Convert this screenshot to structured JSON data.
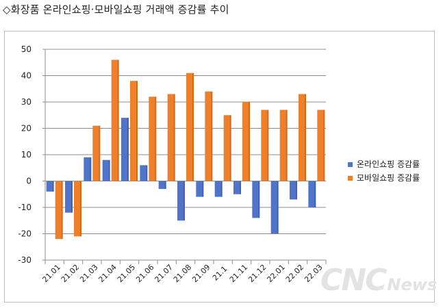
{
  "title": "◇화장품 온라인쇼핑·모바일쇼핑 거래액 증감률 추이",
  "watermark": {
    "big": "CNC",
    "small": "News"
  },
  "chart_data": {
    "type": "bar",
    "categories": [
      "21.01",
      "21.02",
      "21.03",
      "21.04",
      "21.05",
      "21.06",
      "21.07",
      "21.08",
      "21.09",
      "21.1",
      "21.11",
      "21.12",
      "22.01",
      "22.02",
      "22.03"
    ],
    "series": [
      {
        "name": "온라인쇼핑 증감률",
        "color": "#4f74c9",
        "values": [
          -4,
          -12,
          9,
          8,
          24,
          6,
          -3,
          -15,
          -6,
          -6,
          -5,
          -14,
          -20,
          -7,
          -10
        ]
      },
      {
        "name": "모바일쇼핑 증감률",
        "color": "#f07f2a",
        "values": [
          -22,
          -21,
          21,
          46,
          38,
          32,
          33,
          41,
          34,
          25,
          30,
          27,
          27,
          33,
          27
        ]
      }
    ],
    "ylim": [
      -30,
      50
    ],
    "yticks": [
      50,
      40,
      30,
      20,
      10,
      0,
      -10,
      -20,
      -30
    ],
    "grid": true,
    "legend": "right"
  }
}
